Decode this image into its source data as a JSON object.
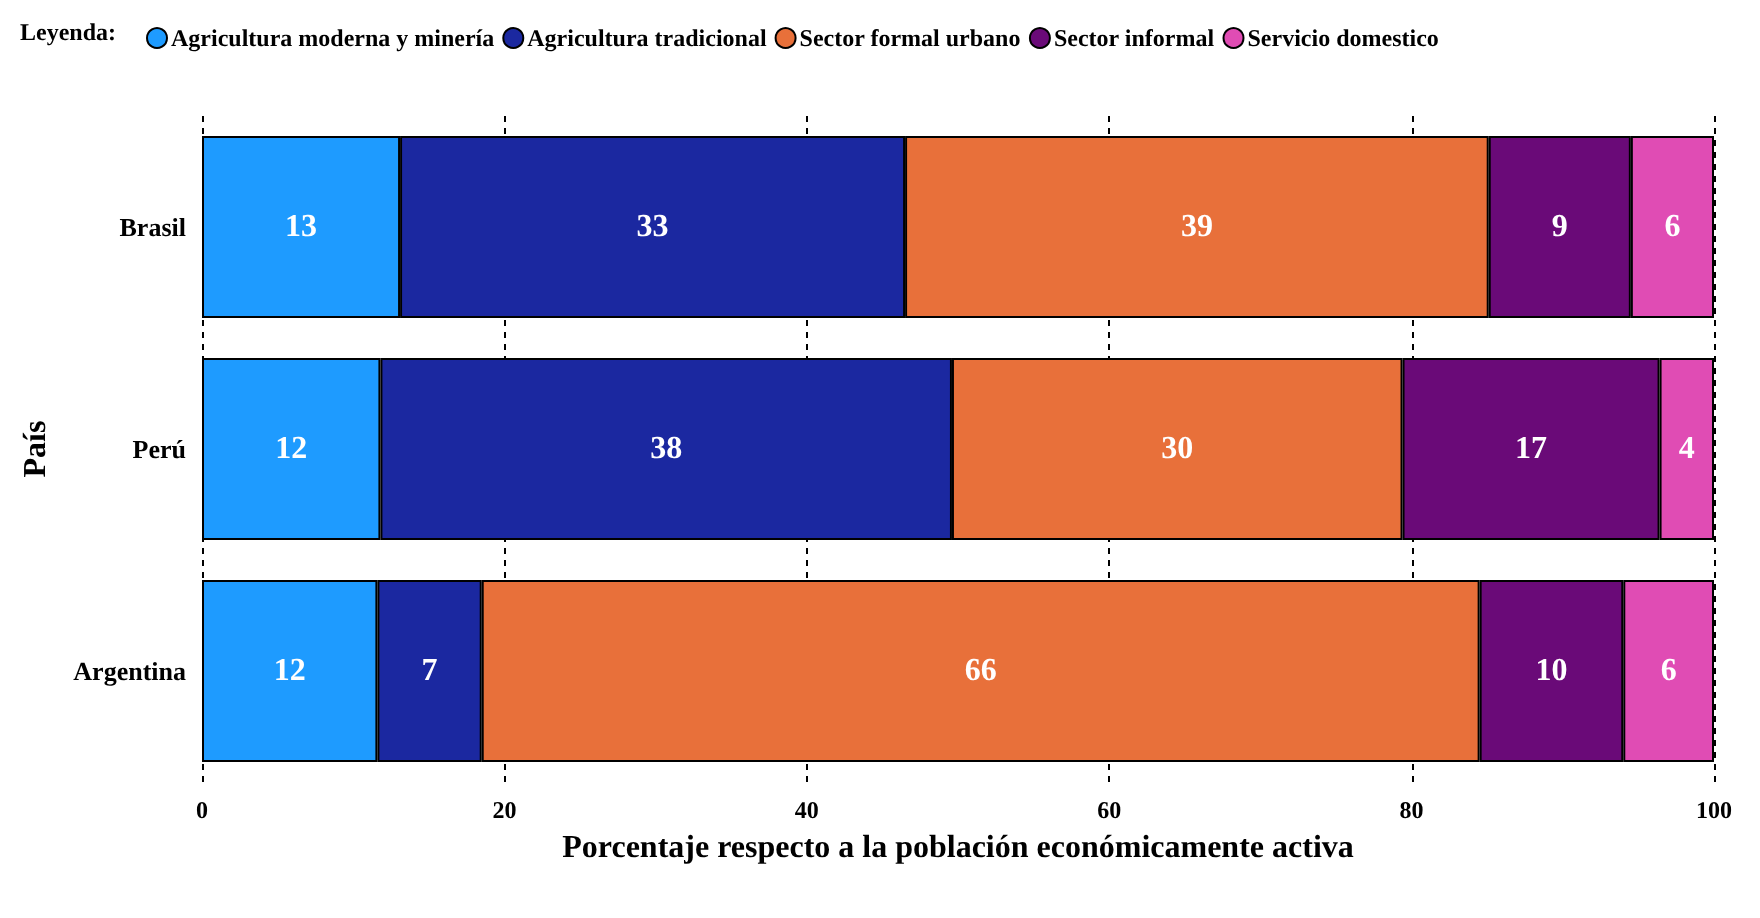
{
  "chart_data": {
    "type": "bar",
    "orientation": "horizontal",
    "stacked": true,
    "xlabel": "Porcentaje respecto a la población económicamente activa",
    "ylabel": "País",
    "legend_title": "Leyenda:",
    "categories": [
      "Brasil",
      "Perú",
      "Argentina"
    ],
    "series": [
      {
        "name": "Agricultura moderna y minería",
        "color": "#1e9bff",
        "values": [
          13.1,
          11.8,
          11.6
        ],
        "value_labels": [
          "13",
          "12",
          "12"
        ]
      },
      {
        "name": "Agricultura tradicional",
        "color": "#1b28a0",
        "values": [
          33.4,
          37.8,
          6.9
        ],
        "value_labels": [
          "33",
          "38",
          "7"
        ]
      },
      {
        "name": "Sector formal urbano",
        "color": "#e8703a",
        "values": [
          38.6,
          29.8,
          66.0
        ],
        "value_labels": [
          "39",
          "30",
          "66"
        ]
      },
      {
        "name": "Sector informal",
        "color": "#6a0a78",
        "values": [
          9.4,
          17.0,
          9.5
        ],
        "value_labels": [
          "9",
          "17",
          "10"
        ]
      },
      {
        "name": "Servicio domestico",
        "color": "#e04cb4",
        "values": [
          5.5,
          3.6,
          6.0
        ],
        "value_labels": [
          "6",
          "4",
          "6"
        ]
      }
    ],
    "xlim": [
      0,
      100
    ],
    "xticks": [
      0,
      20,
      40,
      60,
      80,
      100
    ],
    "grid": "x",
    "legend": "top left"
  }
}
